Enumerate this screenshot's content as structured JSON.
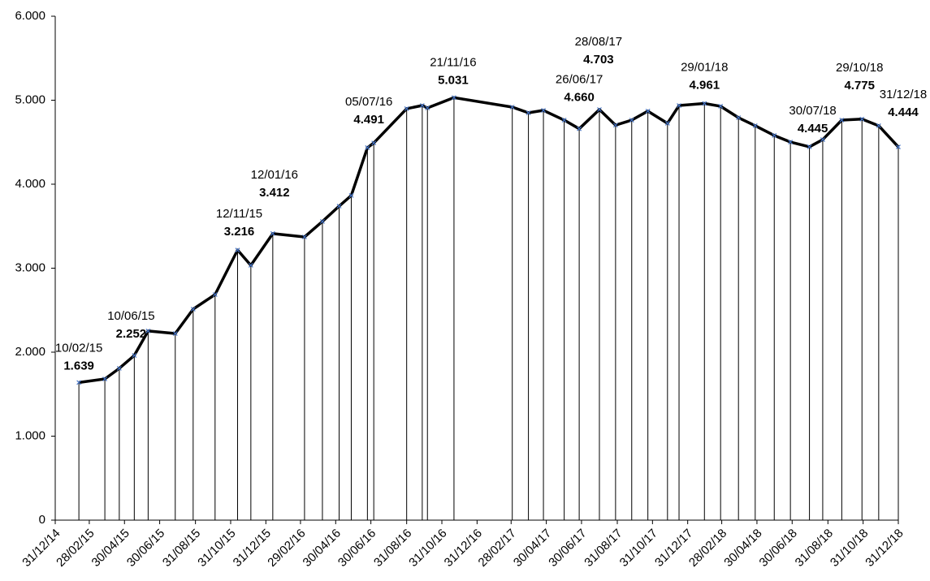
{
  "chart_data": {
    "type": "line",
    "x": [
      "10/02/15",
      "27/03/15",
      "21/04/15",
      "17/05/15",
      "10/06/15",
      "27/07/15",
      "27/08/15",
      "04/10/15",
      "12/11/15",
      "05/12/15",
      "12/01/16",
      "07/03/16",
      "07/04/16",
      "06/05/16",
      "27/05/16",
      "24/06/16",
      "05/07/16",
      "31/08/16",
      "27/09/16",
      "06/10/16",
      "21/11/16",
      "02/03/17",
      "30/03/17",
      "25/04/17",
      "31/05/17",
      "26/06/17",
      "31/07/17",
      "28/08/17",
      "25/09/17",
      "23/10/17",
      "26/11/17",
      "16/12/17",
      "29/01/18",
      "26/02/18",
      "29/03/18",
      "27/04/18",
      "30/05/18",
      "27/06/18",
      "30/07/18",
      "22/08/18",
      "24/09/18",
      "29/10/18",
      "27/11/18",
      "31/12/18"
    ],
    "series": [
      {
        "color": "#000000",
        "values": [
          1639,
          1681,
          1807,
          1961,
          2252,
          2222,
          2512,
          2686,
          3216,
          3034,
          3412,
          3372,
          3556,
          3739,
          3865,
          4435,
          4491,
          4899,
          4937,
          4908,
          5031,
          4918,
          4850,
          4879,
          4763,
          4660,
          4889,
          4703,
          4763,
          4870,
          4725,
          4937,
          4961,
          4928,
          4792,
          4696,
          4580,
          4502,
          4445,
          4531,
          4763,
          4775,
          4696,
          4444
        ],
        "value_labels": [
          "1.639",
          null,
          null,
          null,
          "2.252",
          null,
          null,
          null,
          "3.216",
          null,
          "3.412",
          null,
          null,
          null,
          null,
          null,
          "4.491",
          null,
          null,
          null,
          "5.031",
          null,
          null,
          null,
          null,
          "4.660",
          null,
          "4.703",
          null,
          null,
          null,
          null,
          "4.961",
          null,
          null,
          null,
          null,
          null,
          "4.445",
          null,
          null,
          "4.775",
          null,
          "4.444"
        ]
      }
    ],
    "marker_color": "#4472c4",
    "xlim": [
      "31/12/14",
      "31/12/18"
    ],
    "xticks": [
      "31/12/14",
      "28/02/15",
      "30/04/15",
      "30/06/15",
      "31/08/15",
      "31/10/15",
      "31/12/15",
      "29/02/16",
      "30/04/16",
      "30/06/16",
      "31/08/16",
      "31/10/16",
      "31/12/16",
      "28/02/17",
      "30/04/17",
      "30/06/17",
      "31/08/17",
      "31/10/17",
      "31/12/17",
      "28/02/18",
      "30/04/18",
      "30/06/18",
      "31/08/18",
      "31/10/18",
      "31/12/18"
    ],
    "ylim": [
      0,
      6000
    ],
    "yticks": [
      0,
      {
        "value": 1000,
        "label": "1.000"
      },
      {
        "value": 2000,
        "label": "2.000"
      },
      {
        "value": 3000,
        "label": "3.000"
      },
      {
        "value": 4000,
        "label": "4.000"
      },
      {
        "value": 5000,
        "label": "5.000"
      },
      {
        "value": 6000,
        "label": "6.000"
      }
    ],
    "drop_lines": true
  }
}
